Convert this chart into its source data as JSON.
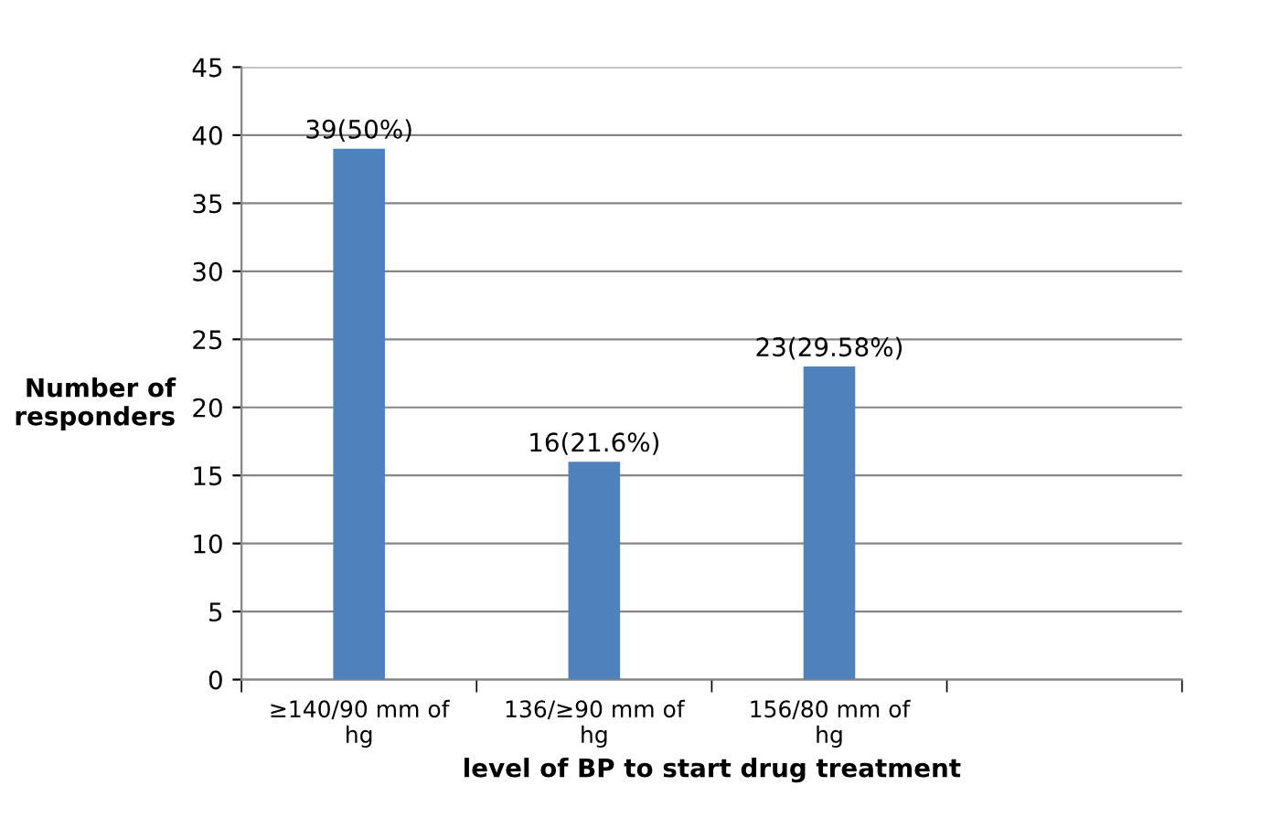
{
  "chart_data": {
    "type": "bar",
    "categories": [
      "≥140/90 mm of hg",
      "136/≥90 mm of hg",
      "156/80 mm of hg",
      null
    ],
    "values": [
      39,
      16,
      23,
      null
    ],
    "value_labels": [
      "39(50%)",
      "16(21.6%)",
      "23(29.58%)",
      null
    ],
    "color": "#4f81bd",
    "xlabel": "level of BP to start drug treatment",
    "ylabel": "Number of responders",
    "ylim": [
      0,
      45
    ],
    "yticks": [
      0,
      5,
      10,
      15,
      20,
      25,
      30,
      35,
      40,
      45
    ],
    "grid": "y"
  }
}
